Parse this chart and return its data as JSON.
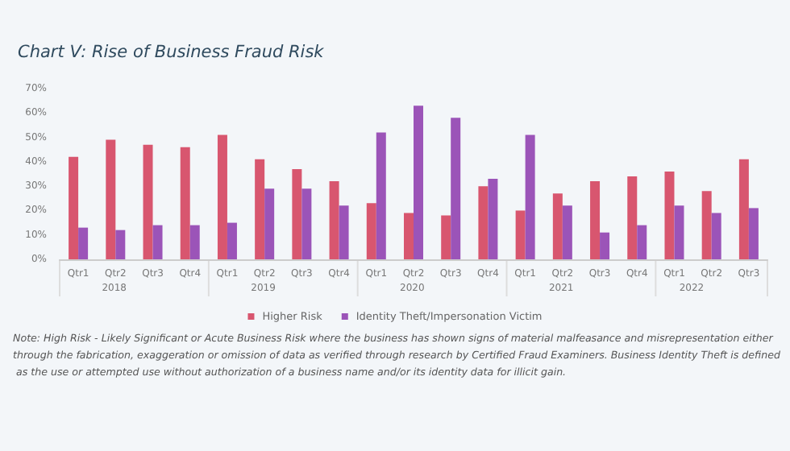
{
  "chart_data": {
    "type": "bar",
    "title": "Chart V: Rise of Business Fraud Risk",
    "categories": [
      "Qtr1",
      "Qtr2",
      "Qtr3",
      "Qtr4",
      "Qtr1",
      "Qtr2",
      "Qtr3",
      "Qtr4",
      "Qtr1",
      "Qtr2",
      "Qtr3",
      "Qtr4",
      "Qtr1",
      "Qtr2",
      "Qtr3",
      "Qtr4",
      "Qtr1",
      "Qtr2",
      "Qtr3"
    ],
    "series": [
      {
        "name": "Higher Risk",
        "color": "#d8566f",
        "values": [
          42,
          49,
          47,
          46,
          51,
          41,
          37,
          32,
          23,
          19,
          18,
          30,
          20,
          27,
          32,
          34,
          36,
          28,
          41
        ]
      },
      {
        "name": "Identity Theft/Impersonation Victim",
        "color": "#9b54b8",
        "values": [
          13,
          12,
          14,
          14,
          15,
          29,
          29,
          22,
          52,
          63,
          58,
          33,
          51,
          22,
          11,
          14,
          22,
          19,
          21
        ]
      }
    ],
    "ylim": [
      0,
      70
    ],
    "yticks": [
      {
        "value": 0,
        "label": "0%"
      },
      {
        "value": 10,
        "label": "10%"
      },
      {
        "value": 20,
        "label": "20%"
      },
      {
        "value": 30,
        "label": "30%"
      },
      {
        "value": 40,
        "label": "40%"
      },
      {
        "value": 50,
        "label": "50%"
      },
      {
        "value": 60,
        "label": "60%"
      },
      {
        "value": 70,
        "label": "70%"
      }
    ],
    "legend": "bottom",
    "annotations": [
      "2018",
      "2019",
      "2020",
      "2021",
      "2022",
      "Note: High Risk - Likely Significant or Acute Business Risk where the business has shown signs of material malfeasance and misrepresentation either through the fabrication, exaggeration or omission of data as verified through research by Certified Fraud Examiners. Business Identity Theft is defined as the use or attempted use without authorization of a business name and/or its identity data for illicit gain."
    ]
  }
}
